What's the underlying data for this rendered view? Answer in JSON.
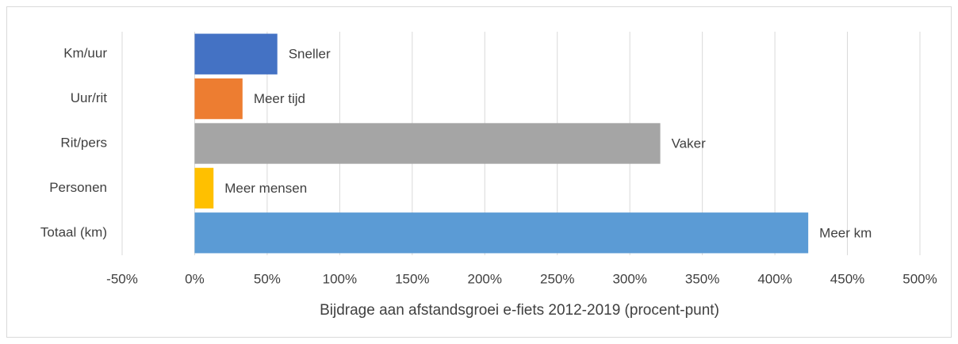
{
  "chart_data": {
    "type": "hbar",
    "x_label": "Bijdrage aan afstandsgroei e-fiets 2012-2019 (procent-punt)",
    "categories": [
      "Km/uur",
      "Uur/rit",
      "Rit/pers",
      "Personen",
      "Totaal (km)"
    ],
    "values": [
      57,
      33,
      321,
      13,
      423
    ],
    "annotations": [
      "Sneller",
      "Meer tijd",
      "Vaker",
      "Meer mensen",
      "Meer km"
    ],
    "colors": [
      "#4472c4",
      "#ed7d31",
      "#a5a5a5",
      "#ffc000",
      "#5b9bd5"
    ],
    "xlim": [
      -50,
      500
    ],
    "xticks": [
      {
        "value": -50,
        "label": "-50%"
      },
      {
        "value": 0,
        "label": "0%"
      },
      {
        "value": 50,
        "label": "50%"
      },
      {
        "value": 100,
        "label": "100%"
      },
      {
        "value": 150,
        "label": "150%"
      },
      {
        "value": 200,
        "label": "200%"
      },
      {
        "value": 250,
        "label": "250%"
      },
      {
        "value": 300,
        "label": "300%"
      },
      {
        "value": 350,
        "label": "350%"
      },
      {
        "value": 400,
        "label": "400%"
      },
      {
        "value": 450,
        "label": "450%"
      },
      {
        "value": 500,
        "label": "500%"
      }
    ],
    "grid": true
  }
}
